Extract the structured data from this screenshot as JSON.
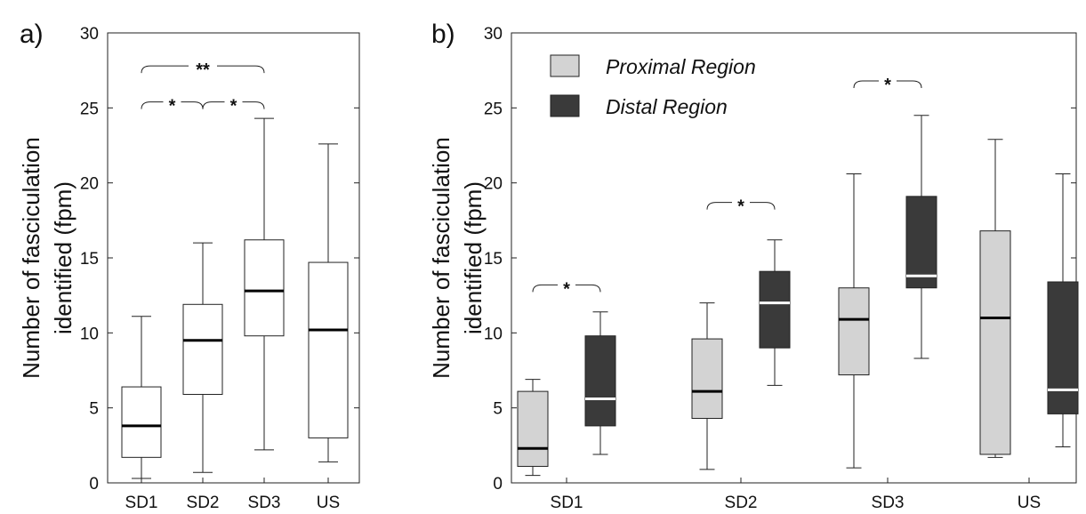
{
  "chart_data": [
    {
      "type": "box",
      "panel_label": "a)",
      "ylabel_line1": "Number of fasciculation",
      "ylabel_line2": "identified (fpm)",
      "ylim": [
        0,
        30
      ],
      "yticks": [
        0,
        5,
        10,
        15,
        20,
        25,
        30
      ],
      "categories": [
        "SD1",
        "SD2",
        "SD3",
        "US"
      ],
      "series": [
        {
          "fill": "#ffffff",
          "median_color": "#000000",
          "boxes": [
            {
              "category": "SD1",
              "min": 0.3,
              "q1": 1.7,
              "median": 3.8,
              "q3": 6.4,
              "max": 11.1
            },
            {
              "category": "SD2",
              "min": 0.7,
              "q1": 5.9,
              "median": 9.5,
              "q3": 11.9,
              "max": 16.0
            },
            {
              "category": "SD3",
              "min": 2.2,
              "q1": 9.8,
              "median": 12.8,
              "q3": 16.2,
              "max": 24.3
            },
            {
              "category": "US",
              "min": 1.4,
              "q1": 3.0,
              "median": 10.2,
              "q3": 14.7,
              "max": 22.6
            }
          ]
        }
      ],
      "significance": [
        {
          "from": "SD1",
          "to": "SD3",
          "label": "**",
          "y": 27.8
        },
        {
          "from": "SD1",
          "to": "SD2",
          "label": "*",
          "y": 25.4
        },
        {
          "from": "SD2",
          "to": "SD3",
          "label": "*",
          "y": 25.4
        }
      ]
    },
    {
      "type": "box",
      "panel_label": "b)",
      "ylabel_line1": "Number of fasciculation",
      "ylabel_line2": "identified (fpm)",
      "ylim": [
        0,
        30
      ],
      "yticks": [
        0,
        5,
        10,
        15,
        20,
        25,
        30
      ],
      "categories": [
        "SD1",
        "SD2",
        "SD3",
        "US"
      ],
      "series": [
        {
          "name": "Proximal Region",
          "fill": "#d3d3d3",
          "median_color": "#000000",
          "boxes": [
            {
              "category": "SD1",
              "min": 0.5,
              "q1": 1.1,
              "median": 2.3,
              "q3": 6.1,
              "max": 6.9
            },
            {
              "category": "SD2",
              "min": 0.9,
              "q1": 4.3,
              "median": 6.1,
              "q3": 9.6,
              "max": 12.0
            },
            {
              "category": "SD3",
              "min": 1.0,
              "q1": 7.2,
              "median": 10.9,
              "q3": 13.0,
              "max": 20.6
            },
            {
              "category": "US",
              "min": 1.7,
              "q1": 1.9,
              "median": 11.0,
              "q3": 16.8,
              "max": 22.9
            }
          ]
        },
        {
          "name": "Distal Region",
          "fill": "#3a3a3a",
          "median_color": "#ffffff",
          "boxes": [
            {
              "category": "SD1",
              "min": 1.9,
              "q1": 3.8,
              "median": 5.6,
              "q3": 9.8,
              "max": 11.4
            },
            {
              "category": "SD2",
              "min": 6.5,
              "q1": 9.0,
              "median": 12.0,
              "q3": 14.1,
              "max": 16.2
            },
            {
              "category": "SD3",
              "min": 8.3,
              "q1": 13.0,
              "median": 13.8,
              "q3": 19.1,
              "max": 24.5
            },
            {
              "category": "US",
              "min": 2.4,
              "q1": 4.6,
              "median": 6.2,
              "q3": 13.4,
              "max": 20.6
            }
          ]
        }
      ],
      "legend_position": "top-left",
      "significance": [
        {
          "category": "SD1",
          "label": "*",
          "y": 13.2
        },
        {
          "category": "SD2",
          "label": "*",
          "y": 18.7
        },
        {
          "category": "SD3",
          "label": "*",
          "y": 26.8
        }
      ]
    }
  ]
}
